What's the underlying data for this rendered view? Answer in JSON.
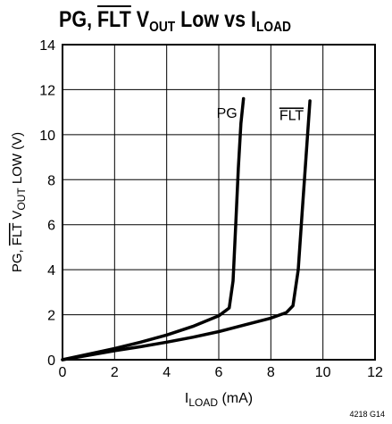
{
  "chart_data": {
    "type": "line",
    "title": {
      "part1": "PG, ",
      "part2": "FLT",
      "part3": " V",
      "part4": "OUT",
      "part5": " Low vs I",
      "part6": "LOAD"
    },
    "xlabel": {
      "main": "I",
      "sub": "LOAD",
      "rest": " (mA)"
    },
    "ylabel": {
      "a": "PG, ",
      "b": "FLT",
      "c": " V",
      "d": "OUT",
      "e": " LOW (V)"
    },
    "xlim": [
      0,
      12
    ],
    "ylim": [
      0,
      14
    ],
    "xticks": [
      0,
      2,
      4,
      6,
      8,
      10,
      12
    ],
    "yticks": [
      0,
      2,
      4,
      6,
      8,
      10,
      12,
      14
    ],
    "grid": true,
    "series": [
      {
        "name": "PG",
        "overline": false,
        "x": [
          0,
          1,
          2,
          3,
          4,
          5,
          6,
          6.4,
          6.55,
          6.65,
          6.75,
          6.85,
          6.95
        ],
        "y": [
          0,
          0.25,
          0.5,
          0.78,
          1.1,
          1.48,
          1.95,
          2.3,
          3.5,
          6,
          8.5,
          10.5,
          11.6
        ]
      },
      {
        "name": "FLT",
        "overline": true,
        "x": [
          0,
          1,
          2,
          3,
          4,
          5,
          6,
          7,
          8,
          8.6,
          8.85,
          9.05,
          9.2,
          9.35,
          9.5
        ],
        "y": [
          0,
          0.2,
          0.4,
          0.58,
          0.78,
          1.0,
          1.25,
          1.55,
          1.85,
          2.1,
          2.4,
          4,
          6.5,
          9,
          11.5
        ]
      }
    ],
    "figure_number": "4218 G14"
  }
}
